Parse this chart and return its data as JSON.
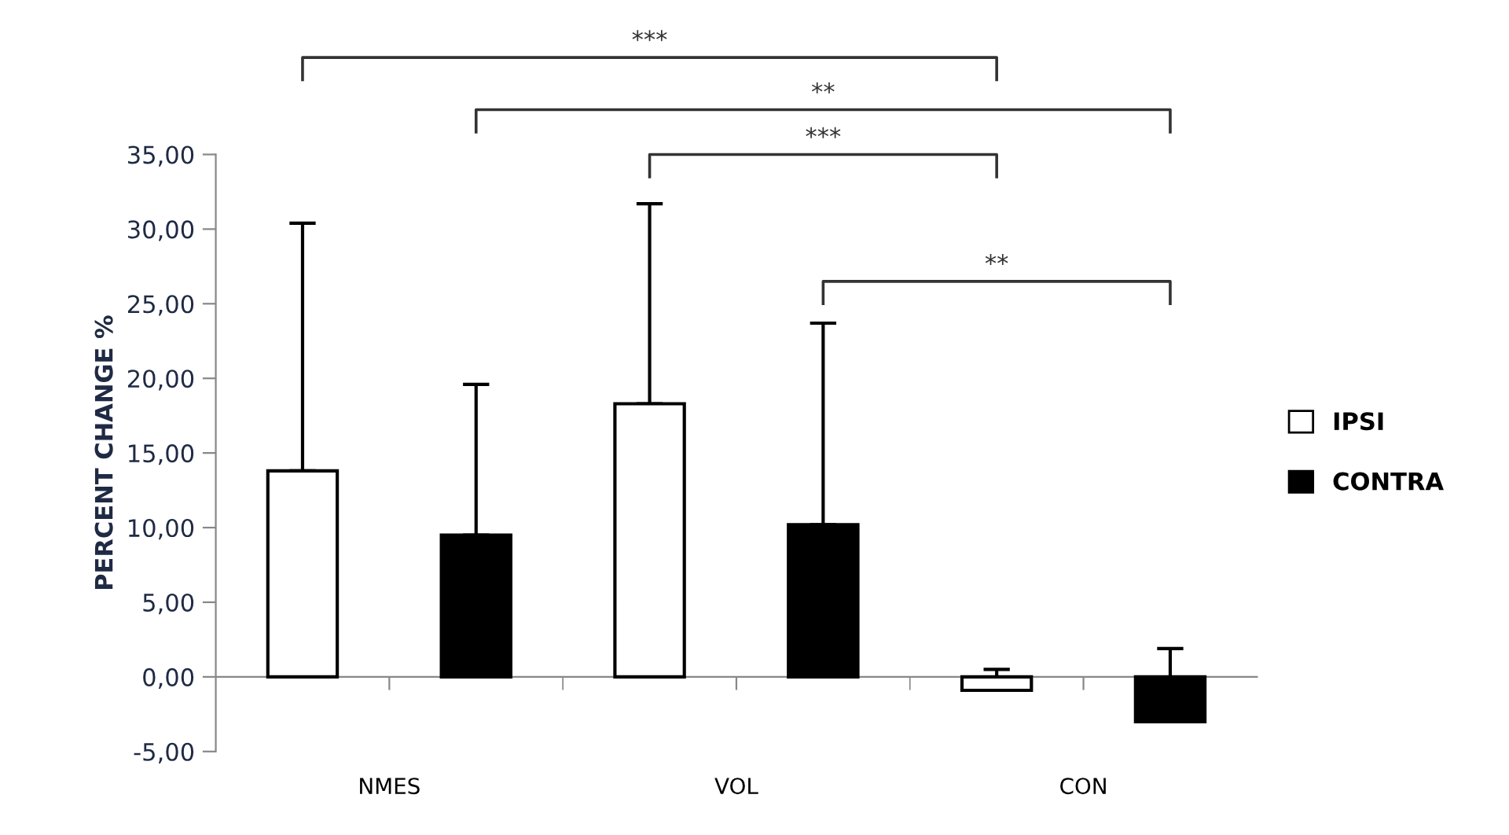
{
  "chart_data": {
    "type": "bar",
    "ylabel": "PERCENT CHANGE %",
    "categories": [
      "NMES",
      "VOL",
      "CON"
    ],
    "series": [
      {
        "name": "IPSI",
        "color": "#ffffff",
        "values": [
          13.8,
          18.3,
          -0.9
        ],
        "errors": [
          [
            13.8,
            30.4
          ],
          [
            18.3,
            31.7
          ],
          [
            -0.9,
            0.5
          ]
        ]
      },
      {
        "name": "CONTRA",
        "color": "#000000",
        "values": [
          9.5,
          10.2,
          -3.0
        ],
        "errors": [
          [
            9.5,
            19.6
          ],
          [
            10.2,
            23.7
          ],
          [
            -3.0,
            1.9
          ]
        ]
      }
    ],
    "ylim": [
      -5,
      35
    ],
    "yticks": [
      {
        "value": -5,
        "label": "-5,00"
      },
      {
        "value": 0,
        "label": "0,00"
      },
      {
        "value": 5,
        "label": "5,00"
      },
      {
        "value": 10,
        "label": "10,00"
      },
      {
        "value": 15,
        "label": "15,00"
      },
      {
        "value": 20,
        "label": "20,00"
      },
      {
        "value": 25,
        "label": "25,00"
      },
      {
        "value": 30,
        "label": "30,00"
      },
      {
        "value": 35,
        "label": "35,00"
      }
    ],
    "legend": "right",
    "annotations": [
      "***",
      "**",
      "***",
      "**"
    ]
  }
}
